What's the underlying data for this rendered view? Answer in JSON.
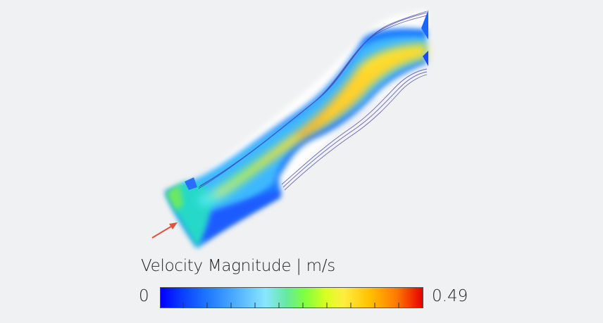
{
  "legend": {
    "title": "Velocity Magnitude | m/s",
    "min": "0",
    "max": "0.49",
    "unit": "m/s"
  },
  "colors": {
    "background": "#f0f1f2",
    "low": "#0000ff",
    "high": "#e60000",
    "arrow": "#e0523f",
    "streamline": "#3a3aa8"
  },
  "icons": {
    "inflow": "inflow-arrow-icon"
  }
}
